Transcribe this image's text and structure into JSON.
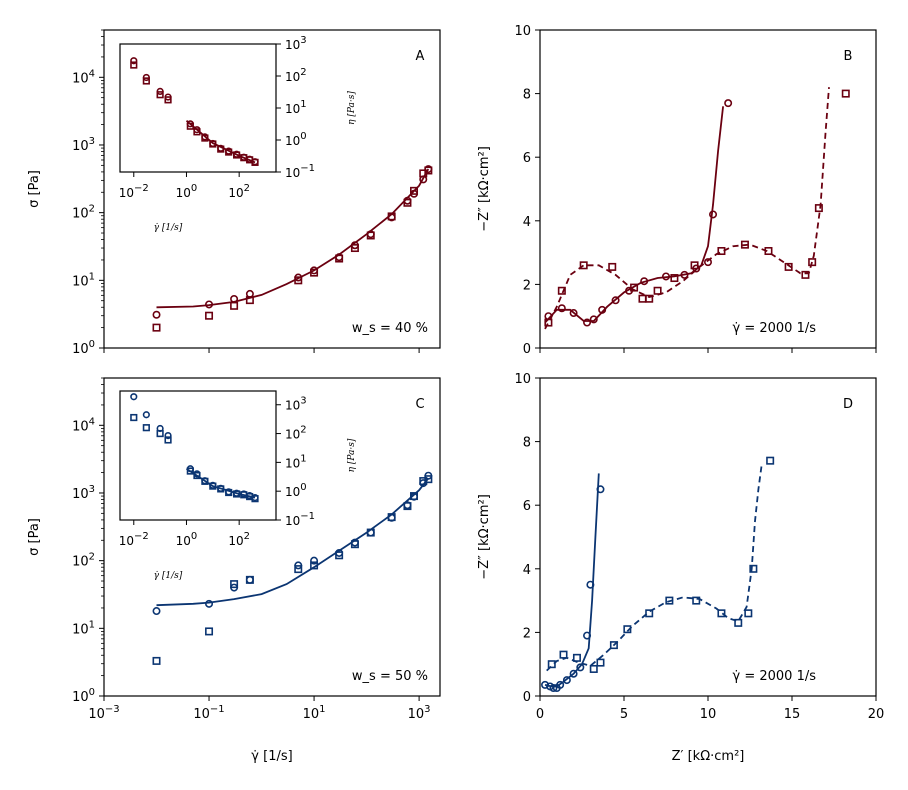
{
  "colors": {
    "red": "#6b0010",
    "blue": "#0b3572"
  },
  "chart_data": [
    {
      "id": "A",
      "type": "scatter",
      "panel_label": "A",
      "annotation": "w_s = 40 %",
      "xlabel": "γ̇ [1/s]",
      "ylabel": "σ [Pa]",
      "xscale": "log",
      "yscale": "log",
      "xlim": [
        0.001,
        2500
      ],
      "ylim": [
        1,
        50000
      ],
      "yticks": [
        "10^0",
        "10^1",
        "10^2",
        "10^3",
        "10^4"
      ],
      "series": [
        {
          "name": "circles",
          "marker": "circle",
          "x": [
            0.01,
            0.1,
            0.3,
            0.6,
            5,
            10,
            30,
            60,
            120,
            300,
            600,
            800,
            1200,
            1500
          ],
          "y": [
            3.1,
            4.4,
            5.3,
            6.3,
            11,
            14,
            22,
            33,
            48,
            85,
            150,
            190,
            310,
            440
          ]
        },
        {
          "name": "squares",
          "marker": "square",
          "x": [
            0.01,
            0.1,
            0.3,
            0.6,
            5,
            10,
            30,
            60,
            120,
            300,
            600,
            800,
            1200,
            1500
          ],
          "y": [
            2,
            3,
            4.2,
            5.1,
            10,
            13,
            21,
            30,
            46,
            88,
            140,
            210,
            380,
            420
          ]
        },
        {
          "name": "fit",
          "marker": "line",
          "x": [
            0.01,
            0.05,
            0.1,
            0.3,
            1,
            3,
            10,
            30,
            100,
            300,
            1000,
            1500
          ],
          "y": [
            4,
            4.1,
            4.3,
            4.8,
            6.1,
            8.8,
            14,
            24,
            48,
            95,
            250,
            440
          ]
        }
      ],
      "inset": {
        "xlabel": "γ̇ [1/s]",
        "ylabel": "η [Pa·s]",
        "xlim": [
          0.003,
          2500
        ],
        "ylim": [
          0.1,
          1000
        ],
        "xticks": [
          "10^-2",
          "10^0",
          "10^2"
        ],
        "yticks": [
          "10^-1",
          "10^0",
          "10^1",
          "10^2",
          "10^3"
        ],
        "series": [
          {
            "name": "circles",
            "marker": "circle",
            "x": [
              0.01,
              0.03,
              0.1,
              0.2,
              1.4,
              2.5,
              5,
              10,
              20,
              40,
              80,
              150,
              250,
              400
            ],
            "y": [
              300,
              90,
              33,
              22,
              3.2,
              2.1,
              1.25,
              0.78,
              0.55,
              0.45,
              0.36,
              0.29,
              0.25,
              0.21
            ]
          },
          {
            "name": "squares",
            "marker": "square",
            "x": [
              0.01,
              0.03,
              0.1,
              0.2,
              1.4,
              2.5,
              5,
              10,
              20,
              40,
              80,
              150,
              250,
              400
            ],
            "y": [
              220,
              70,
              26,
              18,
              2.7,
              1.8,
              1.15,
              0.75,
              0.52,
              0.42,
              0.34,
              0.28,
              0.24,
              0.2
            ]
          },
          {
            "name": "line",
            "marker": "line",
            "x": [
              1,
              10,
              100,
              400
            ],
            "y": [
              4,
              0.8,
              0.32,
              0.2
            ]
          }
        ]
      }
    },
    {
      "id": "B",
      "type": "scatter",
      "panel_label": "B",
      "annotation": "γ̇ = 2000 1/s",
      "xlabel": "Z′ [kΩ·cm²]",
      "ylabel": "−Z″ [kΩ·cm²]",
      "xlim": [
        0,
        20
      ],
      "ylim": [
        0,
        10
      ],
      "yticks": [
        "0",
        "2",
        "4",
        "6",
        "8",
        "10"
      ],
      "series": [
        {
          "name": "circles",
          "marker": "circle",
          "x": [
            0.5,
            1.3,
            2,
            2.8,
            3.2,
            3.7,
            4.5,
            5.3,
            6.2,
            7.5,
            8.6,
            9.3,
            10,
            10.3,
            11.2
          ],
          "y": [
            1,
            1.25,
            1.1,
            0.8,
            0.9,
            1.2,
            1.5,
            1.8,
            2.1,
            2.25,
            2.3,
            2.5,
            2.7,
            4.2,
            7.7
          ]
        },
        {
          "name": "squares",
          "marker": "square",
          "x": [
            0.5,
            1.3,
            2.6,
            4.3,
            5.6,
            6.1,
            6.5,
            7,
            8,
            9.2,
            10.8,
            12.2,
            13.6,
            14.8,
            15.8,
            16.2,
            16.6,
            18.2
          ],
          "y": [
            0.8,
            1.8,
            2.6,
            2.55,
            1.9,
            1.55,
            1.55,
            1.8,
            2.2,
            2.6,
            3.05,
            3.25,
            3.05,
            2.55,
            2.3,
            2.7,
            4.4,
            8
          ]
        },
        {
          "name": "fit-solid",
          "marker": "line",
          "x": [
            0.3,
            1,
            1.8,
            2.6,
            3.2,
            4,
            5,
            6,
            7,
            8,
            9,
            9.6,
            10,
            10.3,
            10.6,
            10.9
          ],
          "y": [
            0.8,
            1.2,
            1.2,
            0.85,
            0.85,
            1.3,
            1.75,
            2.05,
            2.2,
            2.25,
            2.35,
            2.6,
            3.2,
            4.5,
            6.2,
            7.6
          ]
        },
        {
          "name": "fit-dashed",
          "marker": "dashed",
          "x": [
            0.3,
            1,
            1.8,
            2.6,
            3.5,
            4.5,
            5.5,
            6.5,
            7.5,
            8.5,
            9.5,
            10.5,
            11.5,
            12.5,
            13.5,
            14.5,
            15.5,
            16,
            16.3,
            16.7,
            17,
            17.2
          ],
          "y": [
            0.6,
            1.3,
            2.3,
            2.6,
            2.6,
            2.3,
            1.85,
            1.6,
            1.75,
            2.1,
            2.55,
            2.95,
            3.2,
            3.25,
            3.05,
            2.7,
            2.35,
            2.35,
            2.9,
            4.5,
            6.8,
            8.2
          ]
        }
      ]
    },
    {
      "id": "C",
      "type": "scatter",
      "panel_label": "C",
      "annotation": "w_s = 50 %",
      "xlabel": "γ̇ [1/s]",
      "ylabel": "σ [Pa]",
      "xscale": "log",
      "yscale": "log",
      "xlim": [
        0.001,
        2500
      ],
      "ylim": [
        1,
        50000
      ],
      "xticks": [
        "10^-3",
        "10^-1",
        "10^1",
        "10^3"
      ],
      "yticks": [
        "10^0",
        "10^1",
        "10^2",
        "10^3",
        "10^4"
      ],
      "series": [
        {
          "name": "circles",
          "marker": "circle",
          "x": [
            0.01,
            0.1,
            0.3,
            0.6,
            5,
            10,
            30,
            60,
            120,
            300,
            600,
            800,
            1200,
            1500
          ],
          "y": [
            18,
            23,
            40,
            52,
            85,
            100,
            130,
            185,
            260,
            430,
            660,
            880,
            1400,
            1800
          ]
        },
        {
          "name": "squares",
          "marker": "square",
          "x": [
            0.01,
            0.1,
            0.3,
            0.6,
            5,
            10,
            30,
            60,
            120,
            300,
            600,
            800,
            1200,
            1500
          ],
          "y": [
            3.3,
            9,
            45,
            52,
            75,
            85,
            120,
            175,
            260,
            440,
            640,
            900,
            1500,
            1600
          ]
        },
        {
          "name": "fit",
          "marker": "line",
          "x": [
            0.01,
            0.05,
            0.1,
            0.3,
            1,
            3,
            10,
            30,
            100,
            300,
            1000,
            1500
          ],
          "y": [
            22,
            23,
            24,
            27,
            32,
            45,
            80,
            140,
            260,
            480,
            1100,
            1650
          ]
        }
      ],
      "inset": {
        "xlabel": "γ̇ [1/s]",
        "ylabel": "η [Pa·s]",
        "xlim": [
          0.003,
          2500
        ],
        "ylim": [
          0.1,
          3000
        ],
        "xticks": [
          "10^-2",
          "10^0",
          "10^2"
        ],
        "yticks": [
          "10^-1",
          "10^0",
          "10^1",
          "10^2",
          "10^3"
        ],
        "series": [
          {
            "name": "circles",
            "marker": "circle",
            "x": [
              0.01,
              0.03,
              0.1,
              0.2,
              1.4,
              2.5,
              5,
              10,
              20,
              40,
              80,
              150,
              250,
              400
            ],
            "y": [
              1900,
              450,
              150,
              85,
              6,
              4,
              2.3,
              1.6,
              1.25,
              0.95,
              0.85,
              0.8,
              0.7,
              0.6
            ]
          },
          {
            "name": "squares",
            "marker": "square",
            "x": [
              0.01,
              0.03,
              0.1,
              0.2,
              1.4,
              2.5,
              5,
              10,
              20,
              40,
              80,
              150,
              250,
              400
            ],
            "y": [
              360,
              160,
              100,
              60,
              5,
              3.5,
              2.2,
              1.5,
              1.2,
              0.9,
              0.8,
              0.75,
              0.65,
              0.55
            ]
          },
          {
            "name": "line",
            "marker": "line",
            "x": [
              1,
              10,
              100,
              400
            ],
            "y": [
              6,
              1.5,
              0.8,
              0.6
            ]
          }
        ]
      }
    },
    {
      "id": "D",
      "type": "scatter",
      "panel_label": "D",
      "annotation": "γ̇ = 2000 1/s",
      "xlabel": "Z′ [kΩ·cm²]",
      "ylabel": "−Z″ [kΩ·cm²]",
      "xlim": [
        0,
        20
      ],
      "ylim": [
        0,
        10
      ],
      "xticks": [
        "0",
        "5",
        "10",
        "15",
        "20"
      ],
      "yticks": [
        "0",
        "2",
        "4",
        "6",
        "8",
        "10"
      ],
      "series": [
        {
          "name": "circles",
          "marker": "circle",
          "x": [
            0.3,
            0.6,
            0.8,
            1,
            1.2,
            1.6,
            2,
            2.4,
            2.8,
            3,
            3.6
          ],
          "y": [
            0.35,
            0.3,
            0.25,
            0.25,
            0.35,
            0.5,
            0.7,
            0.9,
            1.9,
            3.5,
            6.5
          ]
        },
        {
          "name": "squares",
          "marker": "square",
          "x": [
            0.7,
            1.4,
            2.2,
            3.2,
            3.6,
            4.4,
            5.2,
            6.5,
            7.7,
            9.3,
            10.8,
            11.8,
            12.4,
            12.7,
            13.7
          ],
          "y": [
            1,
            1.3,
            1.2,
            0.85,
            1.05,
            1.6,
            2.1,
            2.6,
            3,
            3,
            2.6,
            2.3,
            2.6,
            4,
            7.4
          ]
        },
        {
          "name": "fit-solid",
          "marker": "line",
          "x": [
            0.3,
            0.7,
            1,
            1.4,
            2,
            2.5,
            2.9,
            3.1,
            3.3,
            3.5
          ],
          "y": [
            0.35,
            0.3,
            0.3,
            0.45,
            0.7,
            1,
            1.5,
            3,
            5,
            7
          ]
        },
        {
          "name": "fit-dashed",
          "marker": "dashed",
          "x": [
            0.4,
            1,
            1.6,
            2.3,
            3,
            3.8,
            4.6,
            5.5,
            6.5,
            7.5,
            8.5,
            9.5,
            10.5,
            11.2,
            11.8,
            12.3,
            12.6,
            12.8,
            13,
            13.2
          ],
          "y": [
            0.8,
            1.1,
            1.2,
            1.05,
            0.95,
            1.3,
            1.7,
            2.2,
            2.65,
            2.95,
            3.1,
            3.05,
            2.75,
            2.45,
            2.35,
            2.8,
            4,
            5.5,
            6.5,
            7.3
          ]
        }
      ]
    }
  ]
}
